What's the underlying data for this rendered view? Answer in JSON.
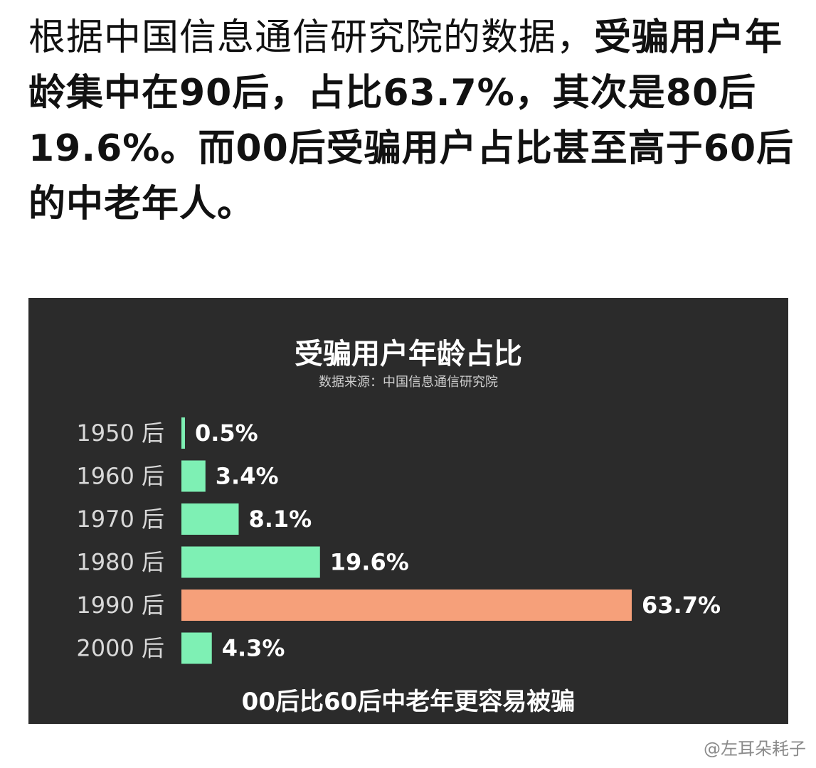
{
  "intro": {
    "text_plain": "根据中国信息通信研究院的数据，",
    "text_bold": "受骗用户年龄集中在90后，占比63.7%，其次是80后19.6%。而00后受骗用户占比甚至高于60后的中老年人。"
  },
  "chart_data": {
    "type": "bar",
    "orientation": "horizontal",
    "title": "受骗用户年龄占比",
    "subtitle": "数据来源：中国信息通信研究院",
    "categories": [
      "1950 后",
      "1960 后",
      "1970 后",
      "1980 后",
      "1990 后",
      "2000 后"
    ],
    "values": [
      0.5,
      3.4,
      8.1,
      19.6,
      63.7,
      4.3
    ],
    "value_labels": [
      "0.5%",
      "3.4%",
      "8.1%",
      "19.6%",
      "63.7%",
      "4.3%"
    ],
    "unit": "%",
    "colors": [
      "#7ef0b4",
      "#7ef0b4",
      "#7ef0b4",
      "#7ef0b4",
      "#f6a07a",
      "#7ef0b4"
    ],
    "background": "#2b2b2b",
    "footer": "00后比60后中老年更容易被骗",
    "grid": false
  },
  "watermark": "@左耳朵耗子"
}
